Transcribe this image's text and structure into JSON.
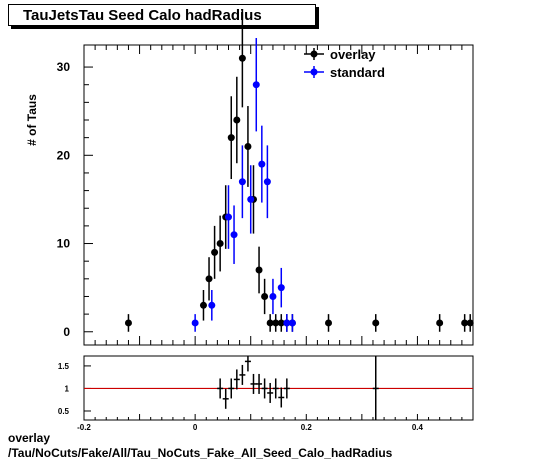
{
  "title": "TauJetsTau Seed Calo hadRadius",
  "footer": {
    "line1": "overlay",
    "line2": "/Tau/NoCuts/Fake/All/Tau_NoCuts_Fake_All_Seed_Calo_hadRadius"
  },
  "colors": {
    "overlay": "#000000",
    "standard": "#0000ff",
    "ratio_line": "#cc0000"
  },
  "chart_data": [
    {
      "type": "scatter",
      "ylabel": "# of Taus",
      "xlim": [
        -0.2,
        0.5
      ],
      "ylim": [
        -1.5,
        32.5
      ],
      "yticks": [
        0,
        10,
        20,
        30
      ],
      "legend_position": "top-right",
      "series": [
        {
          "name": "overlay",
          "x": [
            -0.12,
            0.015,
            0.025,
            0.035,
            0.045,
            0.055,
            0.065,
            0.075,
            0.085,
            0.095,
            0.105,
            0.115,
            0.125,
            0.135,
            0.145,
            0.155,
            0.165,
            0.175,
            0.24,
            0.325,
            0.44,
            0.485,
            0.495
          ],
          "y": [
            1,
            3,
            6,
            9,
            10,
            13,
            22,
            24,
            31,
            21,
            15,
            7,
            4,
            1,
            1,
            1,
            1,
            1,
            1,
            1,
            1,
            1,
            1
          ]
        },
        {
          "name": "standard",
          "x": [
            0.0,
            0.03,
            0.06,
            0.07,
            0.085,
            0.1,
            0.11,
            0.12,
            0.13,
            0.14,
            0.155,
            0.165,
            0.175
          ],
          "y": [
            1,
            3,
            13,
            11,
            17,
            15,
            28,
            19,
            17,
            4,
            5,
            1,
            1
          ]
        }
      ]
    },
    {
      "type": "scatter",
      "xlim": [
        -0.2,
        0.5
      ],
      "ylim": [
        0.3,
        1.72
      ],
      "xticks": [
        -0.2,
        0,
        0.2,
        0.4
      ],
      "yticks": [
        0.5,
        1,
        1.5
      ],
      "reference_line": 1,
      "series": [
        {
          "name": "ratio",
          "x": [
            0.045,
            0.055,
            0.065,
            0.075,
            0.085,
            0.095,
            0.105,
            0.115,
            0.125,
            0.135,
            0.145,
            0.155,
            0.165,
            0.325
          ],
          "y": [
            1.0,
            0.77,
            1.0,
            1.2,
            1.3,
            1.6,
            1.1,
            1.1,
            1.0,
            0.9,
            1.0,
            0.8,
            1.0,
            1.0
          ]
        }
      ]
    }
  ]
}
